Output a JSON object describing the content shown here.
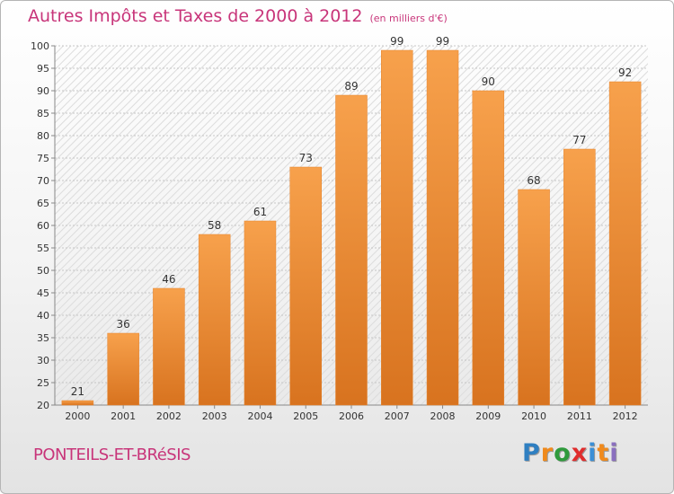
{
  "header": {
    "title": "Autres Impôts et Taxes de 2000 à 2012",
    "unit": "(en milliers d'€)"
  },
  "footer": {
    "city": "PONTEILS-ET-BRéSIS",
    "brand_letters": [
      "P",
      "r",
      "o",
      "x",
      "i",
      "t",
      "i"
    ],
    "brand_colors": [
      "#2f7fc1",
      "#f08a1c",
      "#2f9a3c",
      "#e02d2d",
      "#3b8fd6",
      "#f08a1c",
      "#8a6fbf"
    ]
  },
  "colors": {
    "bar_light": "#f7a14c",
    "bar_dark": "#d8731f",
    "title": "#c8357a"
  },
  "chart_data": {
    "type": "bar",
    "title": "Autres Impôts et Taxes de 2000 à 2012",
    "categories": [
      "2000",
      "2001",
      "2002",
      "2003",
      "2004",
      "2005",
      "2006",
      "2007",
      "2008",
      "2009",
      "2010",
      "2011",
      "2012"
    ],
    "values": [
      21,
      36,
      46,
      58,
      61,
      73,
      89,
      99,
      99,
      90,
      68,
      77,
      92
    ],
    "ylim": [
      20,
      100
    ],
    "yticks": [
      20,
      25,
      30,
      35,
      40,
      45,
      50,
      55,
      60,
      65,
      70,
      75,
      80,
      85,
      90,
      95,
      100
    ],
    "grid": true,
    "xlabel": "",
    "ylabel": ""
  }
}
